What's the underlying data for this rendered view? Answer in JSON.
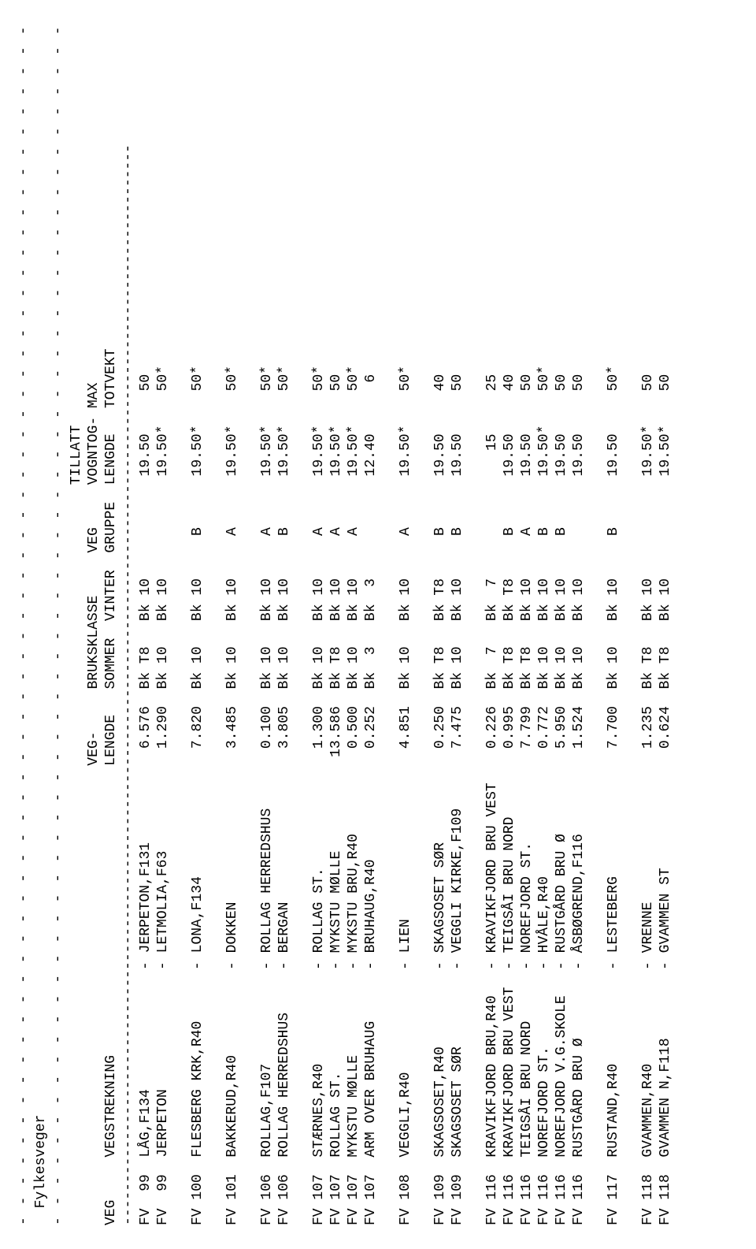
{
  "title": "Fylkesveger",
  "dash_line": "- - - - - - - - - - - - - - - - - - - - - - - - - - - - - - - - - - - - - - - - - - - - - - - - - - - - - - - - - - - - - - - - - -",
  "dash_line2": "-------------------------------------------------------------------------------------------------------------------------------",
  "headers": {
    "h1": {
      "veg": "",
      "num": "",
      "strek": "",
      "dash": "",
      "to": "",
      "len": "VEG-",
      "sommer": "BRUKSKLASSE",
      "vinter": "",
      "gruppe": "VEG",
      "vogn": "TILLATT",
      "max": ""
    },
    "h0": {
      "vogn": "VOGNTOG-",
      "max": "MAX"
    },
    "h2": {
      "veg": "VEG",
      "num": "",
      "strek": "VEGSTREKNING",
      "dash": "",
      "to": "",
      "len": "LENGDE",
      "sommer": "SOMMER",
      "vinter": "VINTER",
      "gruppe": "GRUPPE",
      "vogn": "LENGDE",
      "max": "TOTVEKT"
    }
  },
  "colw": {
    "veg": 3,
    "num": 5,
    "strek": 22,
    "dash": 2,
    "to": 22,
    "len": 8,
    "sommer": 8,
    "vinter": 8,
    "gruppe": 8,
    "vogn": 9,
    "max": 8
  },
  "groups": [
    [
      {
        "veg": "FV",
        "num": "99",
        "from": "LÅG,F134",
        "to": "JERPETON,F131",
        "len": "6.576",
        "sommer": "Bk T8",
        "vinter": "Bk 10",
        "gruppe": "",
        "vogn": "19.50",
        "max": "50"
      },
      {
        "veg": "FV",
        "num": "99",
        "from": "JERPETON",
        "to": "LETMOLIA,F63",
        "len": "1.290",
        "sommer": "Bk 10",
        "vinter": "Bk 10",
        "gruppe": "",
        "vogn": "19.50*",
        "max": "50*"
      }
    ],
    [
      {
        "veg": "FV",
        "num": "100",
        "from": "FLESBERG KRK,R40",
        "to": "LONA,F134",
        "len": "7.820",
        "sommer": "Bk 10",
        "vinter": "Bk 10",
        "gruppe": "B",
        "vogn": "19.50*",
        "max": "50*"
      }
    ],
    [
      {
        "veg": "FV",
        "num": "101",
        "from": "BAKKERUD,R40",
        "to": "DOKKEN",
        "len": "3.485",
        "sommer": "Bk 10",
        "vinter": "Bk 10",
        "gruppe": "A",
        "vogn": "19.50*",
        "max": "50*"
      }
    ],
    [
      {
        "veg": "FV",
        "num": "106",
        "from": "ROLLAG,F107",
        "to": "ROLLAG HERREDSHUS",
        "len": "0.100",
        "sommer": "Bk 10",
        "vinter": "Bk 10",
        "gruppe": "A",
        "vogn": "19.50*",
        "max": "50*"
      },
      {
        "veg": "FV",
        "num": "106",
        "from": "ROLLAG HERREDSHUS",
        "to": "BERGAN",
        "len": "3.805",
        "sommer": "Bk 10",
        "vinter": "Bk 10",
        "gruppe": "B",
        "vogn": "19.50*",
        "max": "50*"
      }
    ],
    [
      {
        "veg": "FV",
        "num": "107",
        "from": "STÆRNES,R40",
        "to": "ROLLAG ST.",
        "len": "1.300",
        "sommer": "Bk 10",
        "vinter": "Bk 10",
        "gruppe": "A",
        "vogn": "19.50*",
        "max": "50*"
      },
      {
        "veg": "FV",
        "num": "107",
        "from": "ROLLAG ST.",
        "to": "MYKSTU MØLLE",
        "len": "13.586",
        "sommer": "Bk T8",
        "vinter": "Bk 10",
        "gruppe": "A",
        "vogn": "19.50*",
        "max": "50"
      },
      {
        "veg": "FV",
        "num": "107",
        "from": "MYKSTU MØLLE",
        "to": "MYKSTU BRU,R40",
        "len": "0.500",
        "sommer": "Bk 10",
        "vinter": "Bk 10",
        "gruppe": "A",
        "vogn": "19.50*",
        "max": "50*"
      },
      {
        "veg": "FV",
        "num": "107",
        "from": "ARM OVER BRUHAUG",
        "to": "BRUHAUG,R40",
        "len": "0.252",
        "sommer": "Bk  3",
        "vinter": "Bk  3",
        "gruppe": "",
        "vogn": "12.40",
        "max": "6"
      }
    ],
    [
      {
        "veg": "FV",
        "num": "108",
        "from": "VEGGLI,R40",
        "to": "LIEN",
        "len": "4.851",
        "sommer": "Bk 10",
        "vinter": "Bk 10",
        "gruppe": "A",
        "vogn": "19.50*",
        "max": "50*"
      }
    ],
    [
      {
        "veg": "FV",
        "num": "109",
        "from": "SKAGSOSET,R40",
        "to": "SKAGSOSET SØR",
        "len": "0.250",
        "sommer": "Bk T8",
        "vinter": "Bk T8",
        "gruppe": "B",
        "vogn": "19.50",
        "max": "40"
      },
      {
        "veg": "FV",
        "num": "109",
        "from": "SKAGSOSET SØR",
        "to": "VEGGLI KIRKE,F109",
        "len": "7.475",
        "sommer": "Bk 10",
        "vinter": "Bk 10",
        "gruppe": "B",
        "vogn": "19.50",
        "max": "50"
      }
    ],
    [
      {
        "veg": "FV",
        "num": "116",
        "from": "KRAVIKFJORD BRU,R40",
        "to": "KRAVIKFJORD BRU VEST",
        "len": "0.226",
        "sommer": "Bk  7",
        "vinter": "Bk  7",
        "gruppe": "",
        "vogn": "15",
        "max": "25"
      },
      {
        "veg": "FV",
        "num": "116",
        "from": "KRAVIKFJORD BRU VEST",
        "to": "TEIGSÅI BRU NORD",
        "len": "0.995",
        "sommer": "Bk T8",
        "vinter": "Bk T8",
        "gruppe": "B",
        "vogn": "19.50",
        "max": "40"
      },
      {
        "veg": "FV",
        "num": "116",
        "from": "TEIGSÅI BRU NORD",
        "to": "NOREFJORD ST.",
        "len": "7.799",
        "sommer": "Bk T8",
        "vinter": "Bk 10",
        "gruppe": "A",
        "vogn": "19.50",
        "max": "50"
      },
      {
        "veg": "FV",
        "num": "116",
        "from": "NOREFJORD ST.",
        "to": "HVÅLE,R40",
        "len": "0.772",
        "sommer": "Bk 10",
        "vinter": "Bk 10",
        "gruppe": "B",
        "vogn": "19.50*",
        "max": "50*"
      },
      {
        "veg": "FV",
        "num": "116",
        "from": "NOREFJORD V.G.SKOLE",
        "to": "RUSTGÅRD BRU Ø",
        "len": "5.950",
        "sommer": "Bk 10",
        "vinter": "Bk 10",
        "gruppe": "B",
        "vogn": "19.50",
        "max": "50"
      },
      {
        "veg": "FV",
        "num": "116",
        "from": "RUSTGÅRD BRU Ø",
        "to": "ÅSBØGREND,F116",
        "len": "1.524",
        "sommer": "Bk 10",
        "vinter": "Bk 10",
        "gruppe": "",
        "vogn": "19.50",
        "max": "50"
      }
    ],
    [
      {
        "veg": "FV",
        "num": "117",
        "from": "RUSTAND,R40",
        "to": "LESTEBERG",
        "len": "7.700",
        "sommer": "Bk 10",
        "vinter": "Bk 10",
        "gruppe": "B",
        "vogn": "19.50",
        "max": "50*"
      }
    ],
    [
      {
        "veg": "FV",
        "num": "118",
        "from": "GVAMMEN,R40",
        "to": "VRENNE",
        "len": "1.235",
        "sommer": "Bk T8",
        "vinter": "Bk 10",
        "gruppe": "",
        "vogn": "19.50*",
        "max": "50"
      },
      {
        "veg": "FV",
        "num": "118",
        "from": "GVAMMEN N,F118",
        "to": "GVAMMEN ST",
        "len": "0.624",
        "sommer": "Bk T8",
        "vinter": "Bk 10",
        "gruppe": "",
        "vogn": "19.50*",
        "max": "50"
      }
    ]
  ]
}
